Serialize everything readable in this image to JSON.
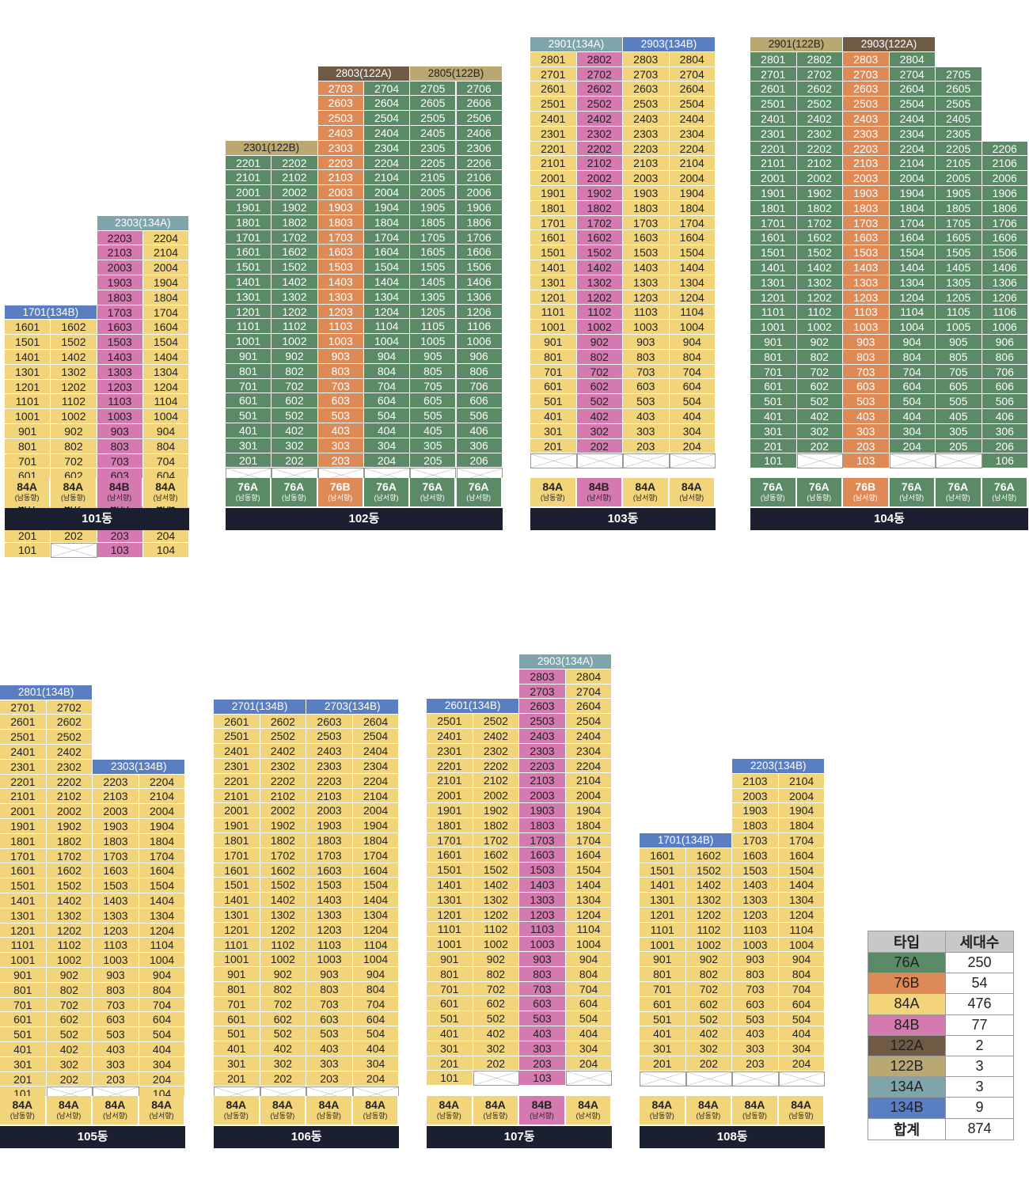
{
  "colors": {
    "76A": "#5a8a66",
    "76B": "#dd8a57",
    "84A": "#f2d57a",
    "84B": "#d57ab0",
    "122A": "#6f5a45",
    "122B": "#b9a872",
    "134A": "#7fa4aa",
    "134B": "#5a7ec2",
    "label_bg": "#1a2030",
    "legend_header": "#c8c8c8"
  },
  "buildings": [
    {
      "name": "101동",
      "columns": [
        "84A",
        "84A",
        "84B",
        "84A"
      ],
      "column_floors": [
        [
          1,
          16
        ],
        [
          2,
          16
        ],
        [
          1,
          22
        ],
        [
          1,
          22
        ]
      ],
      "penthouses": [
        {
          "label": "1701(134B)",
          "type": "134B",
          "floor": 17,
          "cols": [
            0,
            1
          ]
        },
        {
          "label": "2303(134A)",
          "type": "134A",
          "floor": 23,
          "cols": [
            2,
            3
          ]
        }
      ],
      "type_labels": [
        {
          "type": "84A",
          "dir": "(남동향)"
        },
        {
          "type": "84A",
          "dir": "(남동향)"
        },
        {
          "type": "84B",
          "dir": "(남서향)"
        },
        {
          "type": "84A",
          "dir": "(남서향)"
        }
      ]
    },
    {
      "name": "102동",
      "columns": [
        "76A",
        "76A",
        "76B",
        "76A",
        "76A",
        "76A"
      ],
      "column_floors": [
        [
          2,
          22
        ],
        [
          2,
          22
        ],
        [
          2,
          27
        ],
        [
          2,
          27
        ],
        [
          2,
          27
        ],
        [
          2,
          27
        ]
      ],
      "penthouses": [
        {
          "label": "2301(122B)",
          "type": "122B",
          "floor": 23,
          "cols": [
            0,
            1
          ]
        },
        {
          "label": "2803(122A)",
          "type": "122A",
          "floor": 28,
          "cols": [
            2,
            3
          ]
        },
        {
          "label": "2805(122B)",
          "type": "122B",
          "floor": 28,
          "cols": [
            4,
            5
          ]
        }
      ],
      "type_labels": [
        {
          "type": "76A",
          "dir": "(남동향)"
        },
        {
          "type": "76A",
          "dir": "(남동향)"
        },
        {
          "type": "76B",
          "dir": "(남서향)"
        },
        {
          "type": "76A",
          "dir": "(남서향)"
        },
        {
          "type": "76A",
          "dir": "(남서향)"
        },
        {
          "type": "76A",
          "dir": "(남서향)"
        }
      ]
    },
    {
      "name": "103동",
      "columns": [
        "84A",
        "84B",
        "84A",
        "84A"
      ],
      "column_floors": [
        [
          2,
          28
        ],
        [
          2,
          28
        ],
        [
          2,
          28
        ],
        [
          2,
          28
        ]
      ],
      "penthouses": [
        {
          "label": "2901(134A)",
          "type": "134A",
          "floor": 29,
          "cols": [
            0,
            1
          ]
        },
        {
          "label": "2903(134B)",
          "type": "134B",
          "floor": 29,
          "cols": [
            2,
            3
          ]
        }
      ],
      "type_labels": [
        {
          "type": "84A",
          "dir": "(남동향)"
        },
        {
          "type": "84B",
          "dir": "(남서향)"
        },
        {
          "type": "84A",
          "dir": "(남서향)"
        },
        {
          "type": "84A",
          "dir": "(남서향)"
        }
      ]
    },
    {
      "name": "104동",
      "columns": [
        "76A",
        "76A",
        "76B",
        "76A",
        "76A",
        "76A"
      ],
      "column_floors": [
        [
          1,
          28
        ],
        [
          2,
          28
        ],
        [
          1,
          28
        ],
        [
          2,
          28
        ],
        [
          2,
          27
        ],
        [
          1,
          22
        ]
      ],
      "penthouses": [
        {
          "label": "2901(122B)",
          "type": "122B",
          "floor": 29,
          "cols": [
            0,
            1
          ]
        },
        {
          "label": "2903(122A)",
          "type": "122A",
          "floor": 29,
          "cols": [
            2,
            3
          ]
        }
      ],
      "type_labels": [
        {
          "type": "76A",
          "dir": "(남동향)"
        },
        {
          "type": "76A",
          "dir": "(남동향)"
        },
        {
          "type": "76B",
          "dir": "(남서향)"
        },
        {
          "type": "76A",
          "dir": "(남서향)"
        },
        {
          "type": "76A",
          "dir": "(남서향)"
        },
        {
          "type": "76A",
          "dir": "(남서향)"
        }
      ]
    },
    {
      "name": "105동",
      "columns": [
        "84A",
        "84A",
        "84A",
        "84A"
      ],
      "column_floors": [
        [
          1,
          27
        ],
        [
          2,
          27
        ],
        [
          2,
          22
        ],
        [
          1,
          22
        ]
      ],
      "penthouses": [
        {
          "label": "2801(134B)",
          "type": "134B",
          "floor": 28,
          "cols": [
            0,
            1
          ]
        },
        {
          "label": "2303(134B)",
          "type": "134B",
          "floor": 23,
          "cols": [
            2,
            3
          ]
        }
      ],
      "type_labels": [
        {
          "type": "84A",
          "dir": "(남동향)"
        },
        {
          "type": "84A",
          "dir": "(남서향)"
        },
        {
          "type": "84A",
          "dir": "(남서향)"
        },
        {
          "type": "84A",
          "dir": "(남서향)"
        }
      ]
    },
    {
      "name": "106동",
      "columns": [
        "84A",
        "84A",
        "84A",
        "84A"
      ],
      "column_floors": [
        [
          2,
          26
        ],
        [
          2,
          26
        ],
        [
          2,
          26
        ],
        [
          2,
          26
        ]
      ],
      "penthouses": [
        {
          "label": "2701(134B)",
          "type": "134B",
          "floor": 27,
          "cols": [
            0,
            1
          ]
        },
        {
          "label": "2703(134B)",
          "type": "134B",
          "floor": 27,
          "cols": [
            2,
            3
          ]
        }
      ],
      "type_labels": [
        {
          "type": "84A",
          "dir": "(남동향)"
        },
        {
          "type": "84A",
          "dir": "(남동향)"
        },
        {
          "type": "84A",
          "dir": "(남동향)"
        },
        {
          "type": "84A",
          "dir": "(남동향)"
        }
      ]
    },
    {
      "name": "107동",
      "columns": [
        "84A",
        "84A",
        "84B",
        "84A"
      ],
      "column_floors": [
        [
          1,
          25
        ],
        [
          2,
          25
        ],
        [
          1,
          28
        ],
        [
          2,
          28
        ]
      ],
      "penthouses": [
        {
          "label": "2601(134B)",
          "type": "134B",
          "floor": 26,
          "cols": [
            0,
            1
          ]
        },
        {
          "label": "2903(134A)",
          "type": "134A",
          "floor": 29,
          "cols": [
            2,
            3
          ]
        }
      ],
      "type_labels": [
        {
          "type": "84A",
          "dir": "(남동향)"
        },
        {
          "type": "84A",
          "dir": "(남동향)"
        },
        {
          "type": "84B",
          "dir": "(남서향)"
        },
        {
          "type": "84A",
          "dir": "(남서향)"
        }
      ]
    },
    {
      "name": "108동",
      "columns": [
        "84A",
        "84A",
        "84A",
        "84A"
      ],
      "column_floors": [
        [
          2,
          16
        ],
        [
          2,
          16
        ],
        [
          2,
          21
        ],
        [
          2,
          21
        ]
      ],
      "penthouses": [
        {
          "label": "1701(134B)",
          "type": "134B",
          "floor": 17,
          "cols": [
            0,
            1
          ]
        },
        {
          "label": "2203(134B)",
          "type": "134B",
          "floor": 22,
          "cols": [
            2,
            3
          ]
        }
      ],
      "type_labels": [
        {
          "type": "84A",
          "dir": "(남동향)"
        },
        {
          "type": "84A",
          "dir": "(남동향)"
        },
        {
          "type": "84A",
          "dir": "(남동향)"
        },
        {
          "type": "84A",
          "dir": "(남동향)"
        }
      ]
    }
  ],
  "legend": {
    "header_type": "타입",
    "header_count": "세대수",
    "rows": [
      {
        "type": "76A",
        "count": "250"
      },
      {
        "type": "76B",
        "count": "54"
      },
      {
        "type": "84A",
        "count": "476"
      },
      {
        "type": "84B",
        "count": "77"
      },
      {
        "type": "122A",
        "count": "2"
      },
      {
        "type": "122B",
        "count": "3"
      },
      {
        "type": "134A",
        "count": "3"
      },
      {
        "type": "134B",
        "count": "9"
      }
    ],
    "total_label": "합계",
    "total_count": "874"
  }
}
